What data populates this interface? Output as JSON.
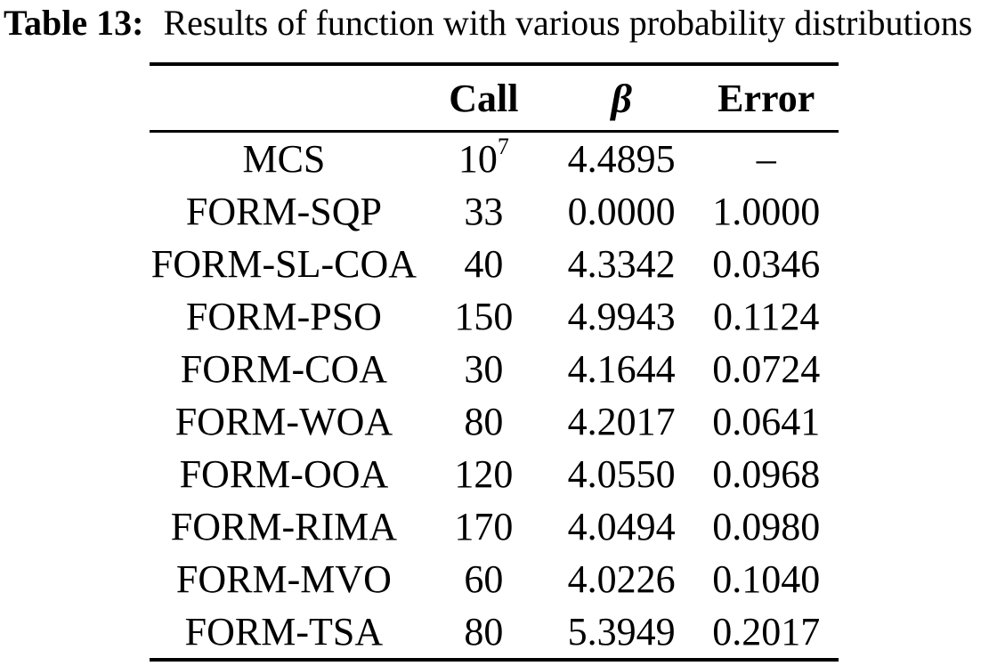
{
  "page": {
    "background_color": "#ffffff",
    "text_color": "#000000"
  },
  "caption": {
    "label": "Table 13:",
    "text": "Results of function with various probability distributions"
  },
  "table": {
    "headers": {
      "method": "",
      "call": "Call",
      "beta": "β",
      "error": "Error"
    },
    "rows": [
      {
        "method": "MCS",
        "call": "10",
        "call_sup": "7",
        "beta": "4.4895",
        "error": "–"
      },
      {
        "method": "FORM-SQP",
        "call": "33",
        "call_sup": "",
        "beta": "0.0000",
        "error": "1.0000"
      },
      {
        "method": "FORM-SL-COA",
        "call": "40",
        "call_sup": "",
        "beta": "4.3342",
        "error": "0.0346"
      },
      {
        "method": "FORM-PSO",
        "call": "150",
        "call_sup": "",
        "beta": "4.9943",
        "error": "0.1124"
      },
      {
        "method": "FORM-COA",
        "call": "30",
        "call_sup": "",
        "beta": "4.1644",
        "error": "0.0724"
      },
      {
        "method": "FORM-WOA",
        "call": "80",
        "call_sup": "",
        "beta": "4.2017",
        "error": "0.0641"
      },
      {
        "method": "FORM-OOA",
        "call": "120",
        "call_sup": "",
        "beta": "4.0550",
        "error": "0.0968"
      },
      {
        "method": "FORM-RIMA",
        "call": "170",
        "call_sup": "",
        "beta": "4.0494",
        "error": "0.0980"
      },
      {
        "method": "FORM-MVO",
        "call": "60",
        "call_sup": "",
        "beta": "4.0226",
        "error": "0.1040"
      },
      {
        "method": "FORM-TSA",
        "call": "80",
        "call_sup": "",
        "beta": "5.3949",
        "error": "0.2017"
      }
    ]
  }
}
